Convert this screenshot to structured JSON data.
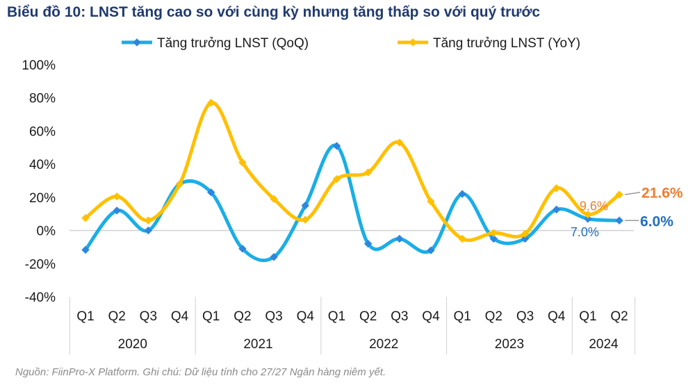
{
  "chart_data": {
    "type": "line",
    "title": "Biểu đồ 10: LNST tăng cao so với cùng kỳ nhưng tăng thấp so với quý trước",
    "source": "Nguồn: FiinPro-X Platform. Ghi chú: Dữ liệu  tính cho 27/27 Ngân hàng niêm yết.",
    "quarters": [
      "Q1",
      "Q2",
      "Q3",
      "Q4",
      "Q1",
      "Q2",
      "Q3",
      "Q4",
      "Q1",
      "Q2",
      "Q3",
      "Q4",
      "Q1",
      "Q2",
      "Q3",
      "Q4",
      "Q1",
      "Q2"
    ],
    "years": [
      {
        "label": "2020",
        "count": 4
      },
      {
        "label": "2021",
        "count": 4
      },
      {
        "label": "2022",
        "count": 4
      },
      {
        "label": "2023",
        "count": 4
      },
      {
        "label": "2024",
        "count": 2
      }
    ],
    "y_ticks": [
      "100%",
      "80%",
      "60%",
      "40%",
      "20%",
      "0%",
      "-20%",
      "-40%"
    ],
    "ylim": [
      -40,
      100
    ],
    "legend_position": "top",
    "grid": false,
    "series": [
      {
        "name": "Tăng trưởng LNST (QoQ)",
        "color": "#1aaee6",
        "marker_color": "#2e86de",
        "values": [
          -11.7,
          12,
          0,
          28,
          23,
          -11,
          -16,
          15,
          51,
          -8,
          -5,
          -12,
          22,
          -5,
          -5,
          12.6,
          7.0,
          6.0
        ]
      },
      {
        "name": "Tăng trưởng LNST (YoY)",
        "color": "#ffc000",
        "marker_color": "#ffc000",
        "values": [
          7.5,
          20.5,
          6,
          28,
          77,
          41,
          19,
          6.5,
          31,
          35,
          53,
          17.5,
          -5,
          -1.5,
          -2,
          25.5,
          9.6,
          21.6
        ]
      }
    ],
    "annotations": {
      "qoq_prev": "7.0%",
      "yoy_prev": "9.6%",
      "qoq_last": "6.0%",
      "yoy_last": "21.6%",
      "qoq_color": "#1f6fbf",
      "yoy_color": "#ed7d31"
    }
  }
}
